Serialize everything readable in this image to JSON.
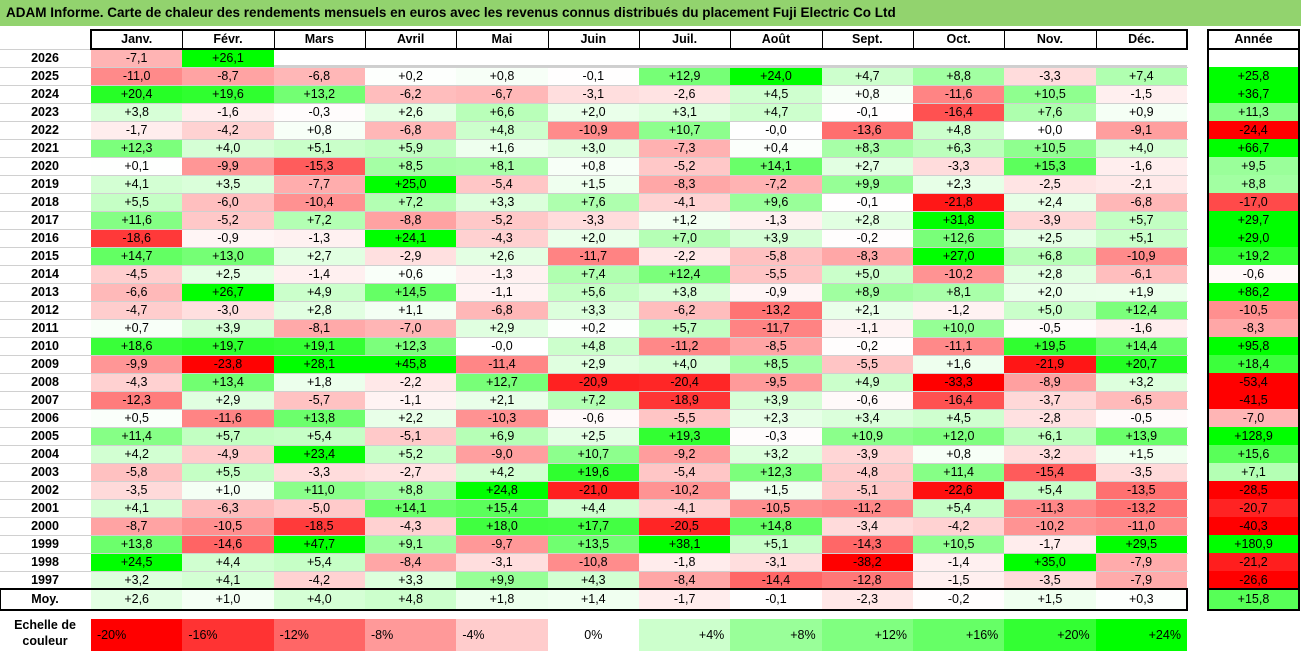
{
  "title": "ADAM Informe. Carte de chaleur des rendements mensuels en euros avec les revenus connus distribués du placement Fuji Electric Co Ltd",
  "chart_data": {
    "type": "heatmap",
    "months": [
      "Janv.",
      "Févr.",
      "Mars",
      "Avril",
      "Mai",
      "Juin",
      "Juil.",
      "Août",
      "Sept.",
      "Oct.",
      "Nov.",
      "Déc."
    ],
    "year_header": "Année",
    "avg_label": "Moy.",
    "rows": [
      {
        "year": "2026",
        "values": [
          "-7,1",
          "+26,1",
          null,
          null,
          null,
          null,
          null,
          null,
          null,
          null,
          null,
          null
        ],
        "annual": null
      },
      {
        "year": "2025",
        "values": [
          "-11,0",
          "-8,7",
          "-6,8",
          "+0,2",
          "+0,8",
          "-0,1",
          "+12,9",
          "+24,0",
          "+4,7",
          "+8,8",
          "-3,3",
          "+7,4"
        ],
        "annual": "+25,8"
      },
      {
        "year": "2024",
        "values": [
          "+20,4",
          "+19,6",
          "+13,2",
          "-6,2",
          "-6,7",
          "-3,1",
          "-2,6",
          "+4,5",
          "+0,8",
          "-11,6",
          "+10,5",
          "-1,5"
        ],
        "annual": "+36,7"
      },
      {
        "year": "2023",
        "values": [
          "+3,8",
          "-1,6",
          "-0,3",
          "+2,6",
          "+6,6",
          "+2,0",
          "+3,1",
          "+4,7",
          "-0,1",
          "-16,4",
          "+7,6",
          "+0,9"
        ],
        "annual": "+11,3"
      },
      {
        "year": "2022",
        "values": [
          "-1,7",
          "-4,2",
          "+0,8",
          "-6,8",
          "+4,8",
          "-10,9",
          "+10,7",
          "-0,0",
          "-13,6",
          "+4,8",
          "+0,0",
          "-9,1"
        ],
        "annual": "-24,4"
      },
      {
        "year": "2021",
        "values": [
          "+12,3",
          "+4,0",
          "+5,1",
          "+5,9",
          "+1,6",
          "+3,0",
          "-7,3",
          "+0,4",
          "+8,3",
          "+6,3",
          "+10,5",
          "+4,0"
        ],
        "annual": "+66,7"
      },
      {
        "year": "2020",
        "values": [
          "+0,1",
          "-9,9",
          "-15,3",
          "+8,5",
          "+8,1",
          "+0,8",
          "-5,2",
          "+14,1",
          "+2,7",
          "-3,3",
          "+15,3",
          "-1,6"
        ],
        "annual": "+9,5"
      },
      {
        "year": "2019",
        "values": [
          "+4,1",
          "+3,5",
          "-7,7",
          "+25,0",
          "-5,4",
          "+1,5",
          "-8,3",
          "-7,2",
          "+9,9",
          "+2,3",
          "-2,5",
          "-2,1"
        ],
        "annual": "+8,8"
      },
      {
        "year": "2018",
        "values": [
          "+5,5",
          "-6,0",
          "-10,4",
          "+7,2",
          "+3,3",
          "+7,6",
          "-4,1",
          "+9,6",
          "-0,1",
          "-21,8",
          "+2,4",
          "-6,8"
        ],
        "annual": "-17,0"
      },
      {
        "year": "2017",
        "values": [
          "+11,6",
          "-5,2",
          "+7,2",
          "-8,8",
          "-5,2",
          "-3,3",
          "+1,2",
          "-1,3",
          "+2,8",
          "+31,8",
          "-3,9",
          "+5,7"
        ],
        "annual": "+29,7"
      },
      {
        "year": "2016",
        "values": [
          "-18,6",
          "-0,9",
          "-1,3",
          "+24,1",
          "-4,3",
          "+2,0",
          "+7,0",
          "+3,9",
          "-0,2",
          "+12,6",
          "+2,5",
          "+5,1"
        ],
        "annual": "+29,0"
      },
      {
        "year": "2015",
        "values": [
          "+14,7",
          "+13,0",
          "+2,7",
          "-2,9",
          "+2,6",
          "-11,7",
          "-2,2",
          "-5,8",
          "-8,3",
          "+27,0",
          "+6,8",
          "-10,9"
        ],
        "annual": "+19,2"
      },
      {
        "year": "2014",
        "values": [
          "-4,5",
          "+2,5",
          "-1,4",
          "+0,6",
          "-1,3",
          "+7,4",
          "+12,4",
          "-5,5",
          "+5,0",
          "-10,2",
          "+2,8",
          "-6,1"
        ],
        "annual": "-0,6"
      },
      {
        "year": "2013",
        "values": [
          "-6,6",
          "+26,7",
          "+4,9",
          "+14,5",
          "-1,1",
          "+5,6",
          "+3,8",
          "-0,9",
          "+8,9",
          "+8,1",
          "+2,0",
          "+1,9"
        ],
        "annual": "+86,2"
      },
      {
        "year": "2012",
        "values": [
          "-4,7",
          "-3,0",
          "+2,8",
          "+1,1",
          "-6,8",
          "+3,3",
          "-6,2",
          "-13,2",
          "+2,1",
          "-1,2",
          "+5,0",
          "+12,4"
        ],
        "annual": "-10,5"
      },
      {
        "year": "2011",
        "values": [
          "+0,7",
          "+3,9",
          "-8,1",
          "-7,0",
          "+2,9",
          "+0,2",
          "+5,7",
          "-11,7",
          "-1,1",
          "+10,0",
          "-0,5",
          "-1,6"
        ],
        "annual": "-8,3"
      },
      {
        "year": "2010",
        "values": [
          "+18,6",
          "+19,7",
          "+19,1",
          "+12,3",
          "-0,0",
          "+4,8",
          "-11,2",
          "-8,5",
          "-0,2",
          "-11,1",
          "+19,5",
          "+14,4"
        ],
        "annual": "+95,8"
      },
      {
        "year": "2009",
        "values": [
          "-9,9",
          "-23,8",
          "+28,1",
          "+45,8",
          "-11,4",
          "+2,9",
          "+4,0",
          "+8,5",
          "-5,5",
          "+1,6",
          "-21,9",
          "+20,7"
        ],
        "annual": "+18,4"
      },
      {
        "year": "2008",
        "values": [
          "-4,3",
          "+13,4",
          "+1,8",
          "-2,2",
          "+12,7",
          "-20,9",
          "-20,4",
          "-9,5",
          "+4,9",
          "-33,3",
          "-8,9",
          "+3,2"
        ],
        "annual": "-53,4"
      },
      {
        "year": "2007",
        "values": [
          "-12,3",
          "+2,9",
          "-5,7",
          "-1,1",
          "+2,1",
          "+7,2",
          "-18,9",
          "+3,9",
          "-0,6",
          "-16,4",
          "-3,7",
          "-6,5"
        ],
        "annual": "-41,5"
      },
      {
        "year": "2006",
        "values": [
          "+0,5",
          "-11,6",
          "+13,8",
          "+2,2",
          "-10,3",
          "-0,6",
          "-5,5",
          "+2,3",
          "+3,4",
          "+4,5",
          "-2,8",
          "-0,5"
        ],
        "annual": "-7,0"
      },
      {
        "year": "2005",
        "values": [
          "+11,4",
          "+5,7",
          "+5,4",
          "-5,1",
          "+6,9",
          "+2,5",
          "+19,3",
          "-0,3",
          "+10,9",
          "+12,0",
          "+6,1",
          "+13,9"
        ],
        "annual": "+128,9"
      },
      {
        "year": "2004",
        "values": [
          "+4,2",
          "-4,9",
          "+23,4",
          "+5,2",
          "-9,0",
          "+10,7",
          "-9,2",
          "+3,2",
          "-3,9",
          "+0,8",
          "-3,2",
          "+1,5"
        ],
        "annual": "+15,6"
      },
      {
        "year": "2003",
        "values": [
          "-5,8",
          "+5,5",
          "-3,3",
          "-2,7",
          "+4,2",
          "+19,6",
          "-5,4",
          "+12,3",
          "-4,8",
          "+11,4",
          "-15,4",
          "-3,5"
        ],
        "annual": "+7,1"
      },
      {
        "year": "2002",
        "values": [
          "-3,5",
          "+1,0",
          "+11,0",
          "+8,8",
          "+24,8",
          "-21,0",
          "-10,2",
          "+1,5",
          "-5,1",
          "-22,6",
          "+5,4",
          "-13,5"
        ],
        "annual": "-28,5"
      },
      {
        "year": "2001",
        "values": [
          "+4,1",
          "-6,3",
          "-5,0",
          "+14,1",
          "+15,4",
          "+4,4",
          "-4,1",
          "-10,5",
          "-11,2",
          "+5,4",
          "-11,3",
          "-13,2"
        ],
        "annual": "-20,7"
      },
      {
        "year": "2000",
        "values": [
          "-8,7",
          "-10,5",
          "-18,5",
          "-4,3",
          "+18,0",
          "+17,7",
          "-20,5",
          "+14,8",
          "-3,4",
          "-4,2",
          "-10,2",
          "-11,0"
        ],
        "annual": "-40,3"
      },
      {
        "year": "1999",
        "values": [
          "+13,8",
          "-14,6",
          "+47,7",
          "+9,1",
          "-9,7",
          "+13,5",
          "+38,1",
          "+5,1",
          "-14,3",
          "+10,5",
          "-1,7",
          "+29,5"
        ],
        "annual": "+180,9"
      },
      {
        "year": "1998",
        "values": [
          "+24,5",
          "+4,4",
          "+5,4",
          "-8,4",
          "-3,1",
          "-10,8",
          "-1,8",
          "-3,1",
          "-38,2",
          "-1,4",
          "+35,0",
          "-7,9"
        ],
        "annual": "-21,2"
      },
      {
        "year": "1997",
        "values": [
          "+3,2",
          "+4,1",
          "-4,2",
          "+3,3",
          "+9,9",
          "+4,3",
          "-8,4",
          "-14,4",
          "-12,8",
          "-1,5",
          "-3,5",
          "-7,9"
        ],
        "annual": "-26,6"
      }
    ],
    "averages": {
      "values": [
        "+2,6",
        "+1,0",
        "+4,0",
        "+4,8",
        "+1,8",
        "+1,4",
        "-1,7",
        "-0,1",
        "-2,3",
        "-0,2",
        "+1,5",
        "+0,3"
      ],
      "annual": "+15,8"
    },
    "legend": {
      "label": "Echelle de couleur",
      "stops": [
        {
          "label": "-20%",
          "color": "#ff0000"
        },
        {
          "label": "-16%",
          "color": "#ff3333"
        },
        {
          "label": "-12%",
          "color": "#ff6666"
        },
        {
          "label": "-8%",
          "color": "#ff9999"
        },
        {
          "label": "-4%",
          "color": "#ffcccc"
        },
        {
          "label": "0%",
          "color": "#ffffff"
        },
        {
          "label": "+4%",
          "color": "#ccffcc"
        },
        {
          "label": "+8%",
          "color": "#99ff99"
        },
        {
          "label": "+12%",
          "color": "#80ff80"
        },
        {
          "label": "+16%",
          "color": "#66ff66"
        },
        {
          "label": "+20%",
          "color": "#33ff33"
        },
        {
          "label": "+24%",
          "color": "#00ff00"
        }
      ]
    }
  }
}
